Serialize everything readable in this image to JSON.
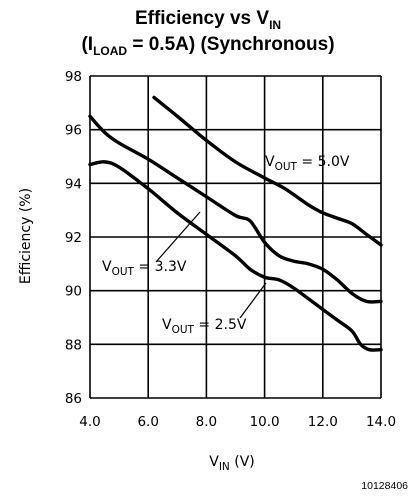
{
  "chart_data": {
    "type": "line",
    "title": {
      "line1_main": "Efficiency vs V",
      "line1_sub": "IN",
      "line2_open": "(I",
      "line2_sub": "LOAD",
      "line2_rest": " = 0.5A) (Synchronous)"
    },
    "xlabel": {
      "main": "V",
      "sub": "IN",
      "unit": " (V)"
    },
    "ylabel": "Efficiency (%)",
    "xlim": [
      4.0,
      14.0
    ],
    "ylim": [
      86,
      98
    ],
    "x_ticks": [
      "4.0",
      "6.0",
      "8.0",
      "10.0",
      "12.0",
      "14.0"
    ],
    "y_ticks": [
      "86",
      "88",
      "90",
      "92",
      "94",
      "96",
      "98"
    ],
    "grid": true,
    "series": [
      {
        "name": "5.0V",
        "x": [
          6.2,
          7.0,
          8.0,
          9.0,
          10.0,
          10.7,
          11.5,
          12.0,
          12.5,
          13.0,
          13.5,
          14.0
        ],
        "y": [
          97.2,
          96.5,
          95.6,
          94.8,
          94.2,
          93.8,
          93.2,
          92.9,
          92.7,
          92.5,
          92.1,
          91.7
        ]
      },
      {
        "name": "3.3V",
        "x": [
          4.0,
          4.5,
          5.0,
          6.0,
          7.0,
          8.0,
          9.0,
          9.5,
          10.0,
          10.5,
          11.0,
          11.5,
          12.0,
          12.5,
          13.0,
          13.5,
          14.0
        ],
        "y": [
          96.5,
          95.9,
          95.5,
          94.9,
          94.2,
          93.5,
          92.8,
          92.6,
          91.8,
          91.3,
          91.1,
          91.0,
          90.8,
          90.4,
          89.9,
          89.6,
          89.6
        ]
      },
      {
        "name": "2.5V",
        "x": [
          4.0,
          4.5,
          5.0,
          6.0,
          7.0,
          8.0,
          9.0,
          9.5,
          10.0,
          10.5,
          11.0,
          12.0,
          12.5,
          13.0,
          13.3,
          13.6,
          14.0
        ],
        "y": [
          94.7,
          94.8,
          94.6,
          93.8,
          92.9,
          92.1,
          91.3,
          90.8,
          90.5,
          90.4,
          90.1,
          89.3,
          88.9,
          88.5,
          88.0,
          87.8,
          87.8
        ]
      }
    ],
    "annotations": [
      {
        "prefix": "V",
        "sub": "OUT",
        "value": " = 5.0V",
        "series": "5.0V"
      },
      {
        "prefix": "V",
        "sub": "OUT",
        "value": " = 3.3V",
        "series": "3.3V"
      },
      {
        "prefix": "V",
        "sub": "OUT",
        "value": " = 2.5V",
        "series": "2.5V"
      }
    ],
    "figure_id": "10128406"
  }
}
